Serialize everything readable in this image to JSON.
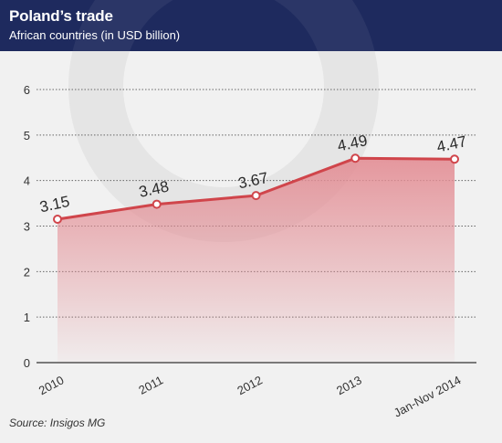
{
  "header": {
    "title": "Poland’s trade",
    "subtitle": "African countries (in USD billion)"
  },
  "footer": {
    "source": "Source: Insigos MG"
  },
  "colors": {
    "header_bg": "#1e2a5e",
    "line": "#d0454b",
    "area_top": "#e79aa0",
    "plot_bg": "#f1f1f1"
  },
  "chart_data": {
    "type": "area",
    "title": "Poland’s trade",
    "subtitle": "African countries (in USD billion)",
    "categories": [
      "2010",
      "2011",
      "2012",
      "2013",
      "Jan-Nov 2014"
    ],
    "values": [
      3.15,
      3.48,
      3.67,
      4.49,
      4.47
    ],
    "data_labels": [
      "3.15",
      "3.48",
      "3.67",
      "4.49",
      "4.47"
    ],
    "ylim": [
      0,
      6
    ],
    "yticks": [
      0,
      1,
      2,
      3,
      4,
      5,
      6
    ],
    "grid": true,
    "legend": "none"
  }
}
